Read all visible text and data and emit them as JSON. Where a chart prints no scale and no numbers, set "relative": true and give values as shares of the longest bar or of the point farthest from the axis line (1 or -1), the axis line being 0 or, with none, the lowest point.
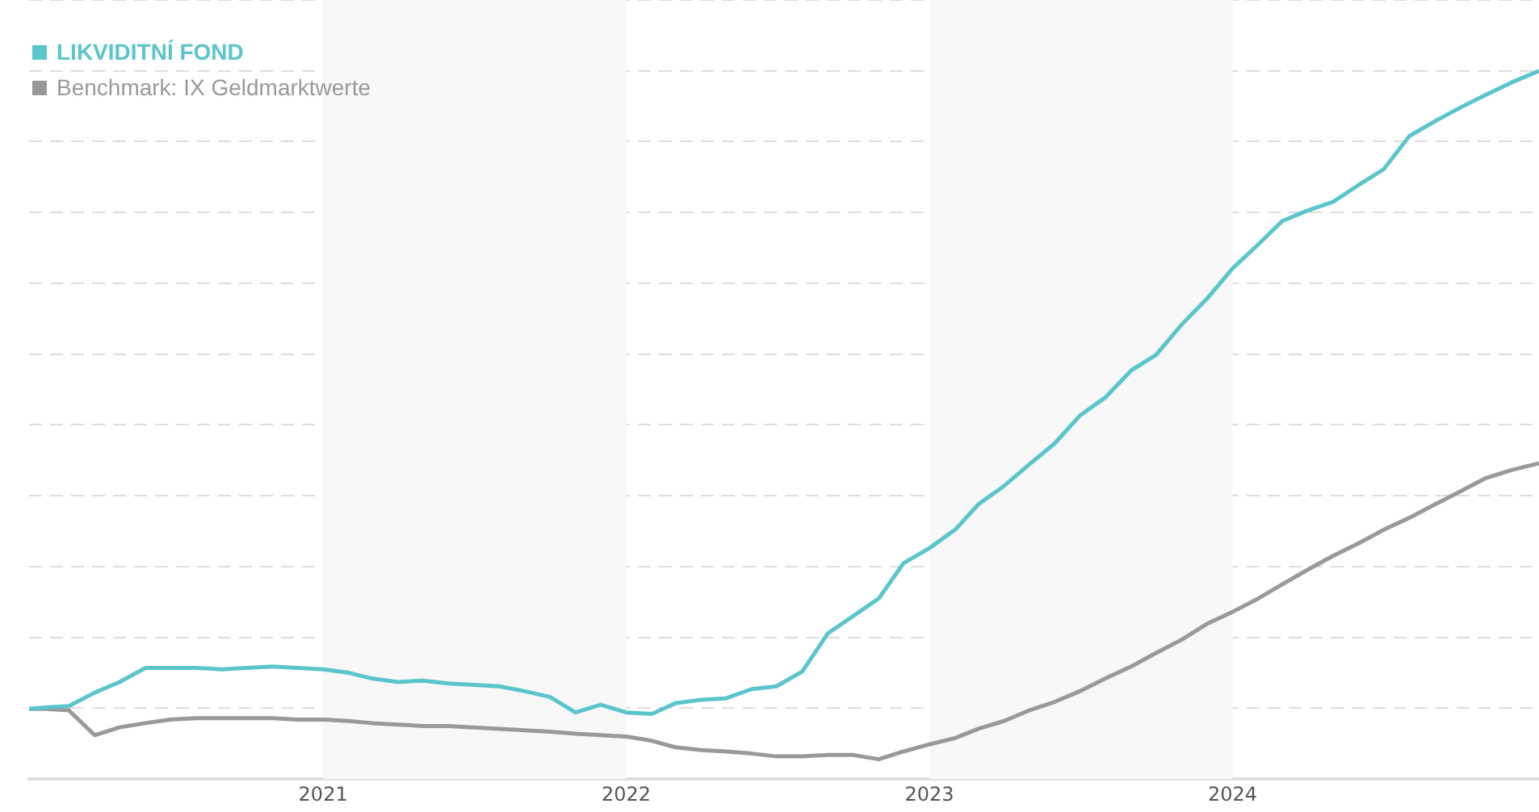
{
  "chart_data": {
    "type": "line",
    "relative": true,
    "grid": "y",
    "legend": "top left",
    "marker": "none",
    "line_style": "solid",
    "xlim": [
      "2020-01-13",
      "2025-01-04"
    ],
    "xticks": [
      {
        "value": "2021-01-01",
        "label": "2021"
      },
      {
        "value": "2022-01-01",
        "label": "2022"
      },
      {
        "value": "2023-01-01",
        "label": "2023"
      },
      {
        "value": "2024-01-01",
        "label": "2024"
      }
    ],
    "bands": [
      {
        "axis": "x",
        "from": "2021-01-01",
        "to": "2022-01-01",
        "color": "#f8f8f8"
      },
      {
        "axis": "x",
        "from": "2023-01-01",
        "to": "2024-01-01",
        "color": "#f8f8f8"
      }
    ],
    "x": [
      "2020-01-13",
      "2020-02-01",
      "2020-03-01",
      "2020-04-01",
      "2020-05-01",
      "2020-06-01",
      "2020-07-01",
      "2020-08-01",
      "2020-09-01",
      "2020-10-01",
      "2020-11-01",
      "2020-12-01",
      "2021-01-01",
      "2021-02-01",
      "2021-03-01",
      "2021-04-01",
      "2021-05-01",
      "2021-06-01",
      "2021-07-01",
      "2021-08-01",
      "2021-09-01",
      "2021-10-01",
      "2021-11-01",
      "2021-12-01",
      "2022-01-01",
      "2022-02-01",
      "2022-03-01",
      "2022-04-01",
      "2022-05-01",
      "2022-06-01",
      "2022-07-01",
      "2022-08-01",
      "2022-09-01",
      "2022-10-01",
      "2022-11-01",
      "2022-12-01",
      "2023-01-01",
      "2023-02-01",
      "2023-03-01",
      "2023-04-01",
      "2023-05-01",
      "2023-06-01",
      "2023-07-01",
      "2023-08-01",
      "2023-09-01",
      "2023-10-01",
      "2023-11-01",
      "2023-12-01",
      "2024-01-01",
      "2024-02-01",
      "2024-03-01",
      "2024-04-01",
      "2024-05-01",
      "2024-06-01",
      "2024-07-01",
      "2024-08-01",
      "2024-09-01",
      "2024-10-01",
      "2024-11-01",
      "2024-12-01",
      "2025-01-04"
    ],
    "series": [
      {
        "name": "LIKVIDITNÍ FOND",
        "color": "#5bc5cc",
        "values": [
          0.099,
          0.101,
          0.103,
          0.122,
          0.137,
          0.157,
          0.157,
          0.157,
          0.155,
          0.157,
          0.159,
          0.157,
          0.155,
          0.15,
          0.142,
          0.137,
          0.139,
          0.135,
          0.133,
          0.131,
          0.124,
          0.116,
          0.094,
          0.105,
          0.094,
          0.092,
          0.107,
          0.112,
          0.114,
          0.127,
          0.131,
          0.152,
          0.206,
          0.23,
          0.255,
          0.305,
          0.326,
          0.352,
          0.388,
          0.414,
          0.444,
          0.474,
          0.513,
          0.539,
          0.577,
          0.599,
          0.642,
          0.678,
          0.721,
          0.755,
          0.788,
          0.803,
          0.815,
          0.839,
          0.861,
          0.908,
          0.929,
          0.948,
          0.966,
          0.983,
          1
        ]
      },
      {
        "name": "Benchmark: IX Geldmarktwerte",
        "color": "#999999",
        "values": [
          0.099,
          0.099,
          0.097,
          0.062,
          0.073,
          0.079,
          0.084,
          0.086,
          0.086,
          0.086,
          0.086,
          0.084,
          0.084,
          0.082,
          0.079,
          0.077,
          0.075,
          0.075,
          0.073,
          0.071,
          0.069,
          0.067,
          0.064,
          0.062,
          0.06,
          0.054,
          0.045,
          0.041,
          0.039,
          0.036,
          0.032,
          0.032,
          0.034,
          0.034,
          0.028,
          0.039,
          0.049,
          0.058,
          0.071,
          0.082,
          0.097,
          0.109,
          0.124,
          0.142,
          0.159,
          0.178,
          0.197,
          0.219,
          0.236,
          0.255,
          0.275,
          0.296,
          0.315,
          0.333,
          0.352,
          0.369,
          0.388,
          0.406,
          0.425,
          0.436,
          0.446
        ]
      }
    ]
  }
}
